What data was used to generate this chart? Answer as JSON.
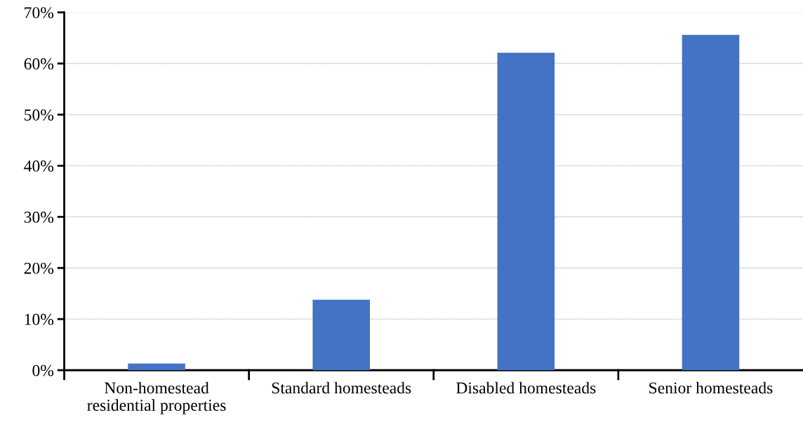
{
  "chart_data": {
    "type": "bar",
    "categories": [
      "Non-homestead\nresidential properties",
      "Standard homesteads",
      "Disabled homesteads",
      "Senior homesteads"
    ],
    "values": [
      1.3,
      13.8,
      62.1,
      65.6
    ],
    "color": "#4472c4",
    "ylim": [
      0,
      70
    ],
    "yticks": [
      {
        "value": 0,
        "label": "0%"
      },
      {
        "value": 10,
        "label": "10%"
      },
      {
        "value": 20,
        "label": "20%"
      },
      {
        "value": 30,
        "label": "30%"
      },
      {
        "value": 40,
        "label": "40%"
      },
      {
        "value": 50,
        "label": "50%"
      },
      {
        "value": 60,
        "label": "60%"
      },
      {
        "value": 70,
        "label": "70%"
      }
    ],
    "grid": "y",
    "legend": false
  }
}
